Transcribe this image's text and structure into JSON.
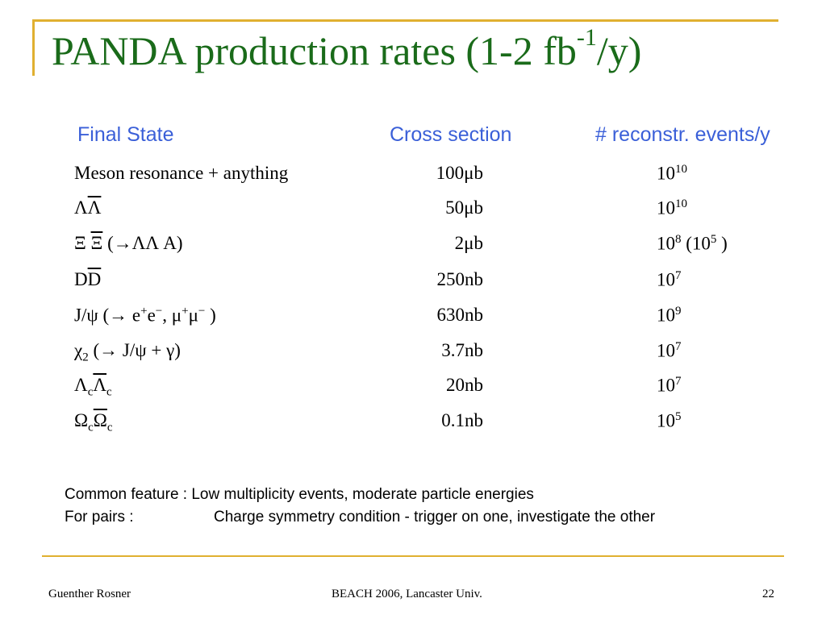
{
  "slide": {
    "title_main": "PANDA production rates (1-2 fb",
    "title_sup": "-1",
    "title_end": "/y)"
  },
  "table": {
    "headers": [
      "Final State",
      "Cross section",
      "# reconstr. events/y"
    ],
    "rows": [
      {
        "state": "Meson  resonance + anything",
        "xsec": "100μb",
        "events_base": "10",
        "events_exp": "10",
        "events_extra": ""
      },
      {
        "state_a": "Λ",
        "state_b": "Λ",
        "xsec": "50μb",
        "events_base": "10",
        "events_exp": "10"
      },
      {
        "state_a": "Ξ",
        "state_b": "Ξ",
        "state_c": " (→ΛΛ A)",
        "xsec": "2μb",
        "events_base": "10",
        "events_exp": "8",
        "events_extra_open": " (10",
        "events_extra_exp": "5",
        "events_extra_close": " )"
      },
      {
        "state_a": "D",
        "state_b": "D",
        "xsec": "250nb",
        "events_base": "10",
        "events_exp": "7"
      },
      {
        "state_a": "J/ψ (→ e",
        "sup1": "+",
        "state_b": "e",
        "sup2": "−",
        "state_c": ", μ",
        "sup3": "+",
        "state_d": "μ",
        "sup4": "−",
        "state_e": " )",
        "xsec": "630nb",
        "events_base": "10",
        "events_exp": "9"
      },
      {
        "state_a": "χ",
        "sub": "2",
        "state_b": " (→ J/ψ + γ)",
        "xsec": "3.7nb",
        "events_base": "10",
        "events_exp": "7"
      },
      {
        "state_a": "Λ",
        "sub_a": "c",
        "state_b": "Λ",
        "sub_b": "c",
        "xsec": "20nb",
        "events_base": "10",
        "events_exp": "7"
      },
      {
        "state_a": "Ω",
        "sub_a": "c",
        "state_b": "Ω",
        "sub_b": "c",
        "xsec": "0.1nb",
        "events_base": "10",
        "events_exp": "5"
      }
    ]
  },
  "notes": [
    {
      "label": "Common feature :",
      "text": "Low multiplicity events, moderate particle energies"
    },
    {
      "label": "For pairs :",
      "text": "Charge symmetry condition - trigger on one, investigate the other"
    }
  ],
  "footer": {
    "author": "Guenther Rosner",
    "event": "BEACH 2006, Lancaster Univ.",
    "page": "22"
  },
  "colors": {
    "title": "#1a6b1a",
    "header": "#3a5fd8",
    "accent_rule": "#e0b030"
  }
}
